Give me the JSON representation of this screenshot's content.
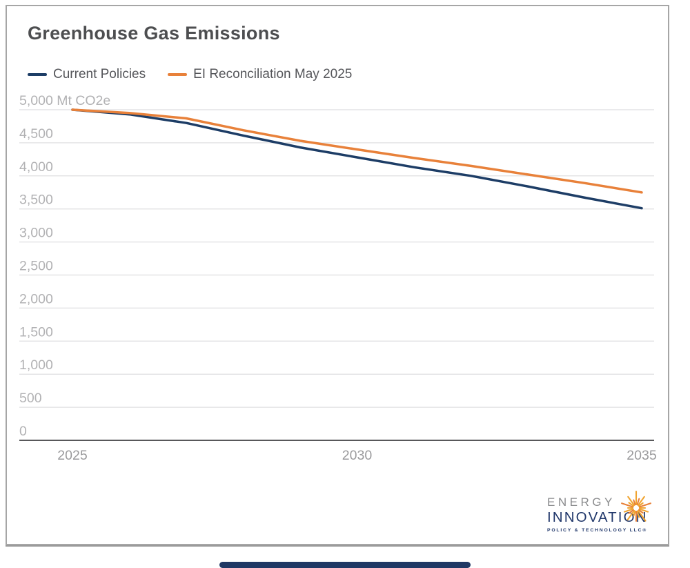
{
  "card": {
    "title": "Greenhouse Gas Emissions"
  },
  "legend": [
    {
      "label": "Current Policies",
      "color": "#1d3d66"
    },
    {
      "label": "EI Reconciliation May 2025",
      "color": "#e8813a"
    }
  ],
  "chart_data": {
    "type": "line",
    "title": "Greenhouse Gas Emissions",
    "unit": "Mt CO2e",
    "x": [
      2025,
      2026,
      2027,
      2028,
      2029,
      2030,
      2031,
      2032,
      2033,
      2034,
      2035
    ],
    "series": [
      {
        "name": "Current Policies",
        "color": "#1d3d66",
        "values": [
          5000,
          4930,
          4800,
          4610,
          4430,
          4280,
          4130,
          4000,
          3840,
          3670,
          3510
        ]
      },
      {
        "name": "EI Reconciliation May 2025",
        "color": "#e8813a",
        "values": [
          5000,
          4950,
          4870,
          4690,
          4530,
          4400,
          4270,
          4150,
          4020,
          3890,
          3750
        ]
      }
    ],
    "xlim": [
      2025,
      2035
    ],
    "ylim": [
      0,
      5000
    ],
    "y_ticks": [
      {
        "value": 0,
        "label": "0"
      },
      {
        "value": 500,
        "label": "500"
      },
      {
        "value": 1000,
        "label": "1,000"
      },
      {
        "value": 1500,
        "label": "1,500"
      },
      {
        "value": 2000,
        "label": "2,000"
      },
      {
        "value": 2500,
        "label": "2,500"
      },
      {
        "value": 3000,
        "label": "3,000"
      },
      {
        "value": 3500,
        "label": "3,500"
      },
      {
        "value": 4000,
        "label": "4,000"
      },
      {
        "value": 4500,
        "label": "4,500"
      },
      {
        "value": 5000,
        "label": "5,000 Mt CO2e"
      }
    ],
    "x_ticks": [
      {
        "value": 2025,
        "label": "2025"
      },
      {
        "value": 2030,
        "label": "2030"
      },
      {
        "value": 2035,
        "label": "2035"
      }
    ],
    "grid": true,
    "legend_position": "top-left"
  },
  "logo": {
    "line1": "ENERGY",
    "line2": "INNOVATION",
    "line3": "POLICY & TECHNOLOGY LLC®",
    "colors": {
      "gray": "#8a8b8d",
      "navy": "#21386b",
      "gold": "#f0a431",
      "orange": "#e8813a"
    }
  },
  "colors": {
    "gridline": "#e4e4e6",
    "zero_axis": "#58585a",
    "y_tick_label": "#b2b2b4",
    "x_tick_label": "#9a9a9c",
    "card_border": "#a6a6a6",
    "home_bar": "#1f3864"
  }
}
